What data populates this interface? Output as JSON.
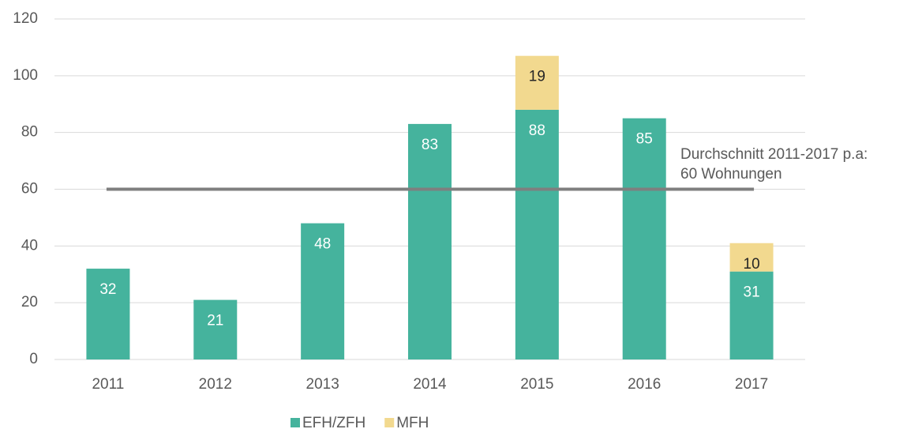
{
  "chart_data": {
    "type": "stacked_bar",
    "categories": [
      "2011",
      "2012",
      "2013",
      "2014",
      "2015",
      "2016",
      "2017"
    ],
    "series": [
      {
        "name": "EFH/ZFH",
        "color": "#45b39d",
        "label_color": "#ffffff",
        "values": [
          32,
          21,
          48,
          83,
          88,
          85,
          31
        ]
      },
      {
        "name": "MFH",
        "color": "#f2d98f",
        "label_color": "#262626",
        "values": [
          null,
          null,
          null,
          null,
          19,
          null,
          10
        ]
      }
    ],
    "average": {
      "value": 60,
      "color": "#7f7f7f",
      "annotation": [
        "Durchschnitt 2011-2017 p.a:",
        "60 Wohnungen"
      ]
    },
    "ylim": [
      0,
      120
    ],
    "yticks": [
      0,
      20,
      40,
      60,
      80,
      100,
      120
    ],
    "grid": true,
    "legend": "bottom"
  }
}
